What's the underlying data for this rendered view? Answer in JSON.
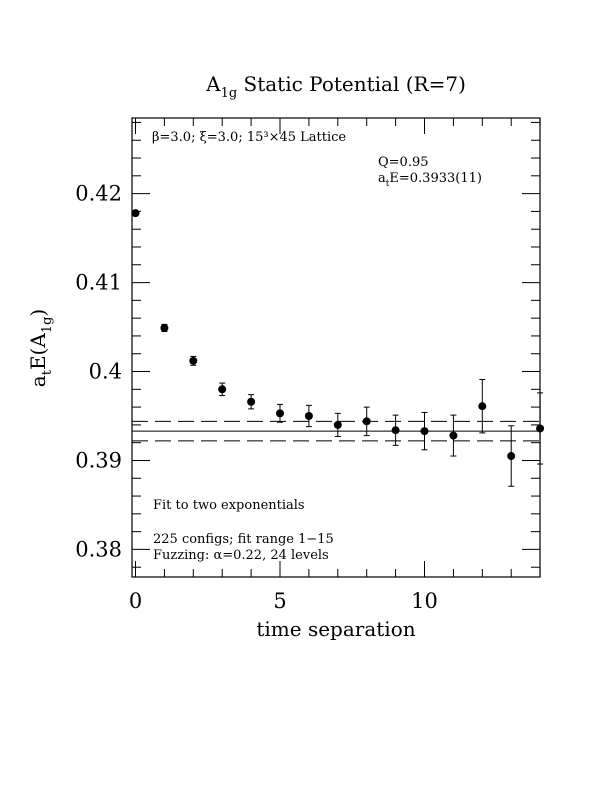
{
  "chart_data": {
    "type": "scatter",
    "title": {
      "main": "A",
      "sub": "1g",
      "rest": " Static Potential (R=7)"
    },
    "xlabel": "time separation",
    "ylabel": {
      "prefix": "a",
      "prefix_sub": "t",
      "mid": "E(A",
      "mid_sub": "1g",
      "suffix": ")"
    },
    "xlim": [
      0,
      14
    ],
    "ylim": [
      0.3769,
      0.4285
    ],
    "xticks": [
      0,
      5,
      10
    ],
    "xtick_labels": [
      "0",
      "5",
      "10"
    ],
    "yticks": [
      0.38,
      0.39,
      0.4,
      0.41,
      0.42
    ],
    "ytick_labels": [
      "0.38",
      "0.39",
      "0.4",
      "0.41",
      "0.42"
    ],
    "series": [
      {
        "x": [
          0,
          1,
          2,
          3,
          4,
          5,
          6,
          7,
          8,
          9,
          10,
          11,
          12,
          13,
          14
        ],
        "y": [
          0.4178,
          0.4049,
          0.4012,
          0.398,
          0.3966,
          0.3953,
          0.395,
          0.394,
          0.3944,
          0.3934,
          0.3933,
          0.3928,
          0.3961,
          0.3905,
          0.3936
        ],
        "err": [
          0.0002,
          0.0004,
          0.0005,
          0.0007,
          0.0008,
          0.001,
          0.0012,
          0.0013,
          0.0016,
          0.0017,
          0.0021,
          0.0023,
          0.003,
          0.0034,
          0.004
        ]
      }
    ],
    "fit": {
      "value": 0.3933,
      "error": 0.0011
    },
    "annotations": {
      "lattice": "β=3.0; ξ=3.0; 15³×45 Lattice",
      "q": "Q=0.95",
      "energy": {
        "prefix": "a",
        "sub": "t",
        "rest": "E=0.3933(11)"
      },
      "method": "Fit to two exponentials",
      "configs": "225 configs; fit range 1−15",
      "fuzzing": "Fuzzing: α=0.22, 24 levels"
    }
  }
}
